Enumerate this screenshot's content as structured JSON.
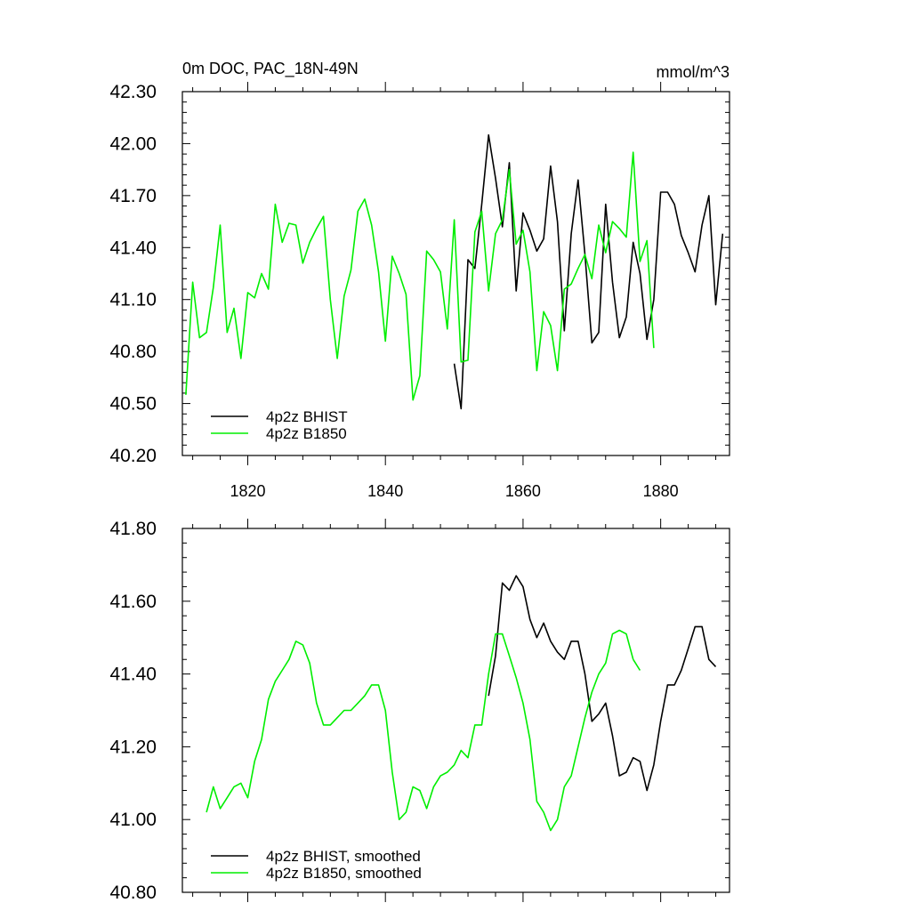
{
  "colors": {
    "bhist": "#000000",
    "b1850": "#00ee00",
    "frame": "#000000"
  },
  "chart_data": [
    {
      "type": "line",
      "title": "0m DOC, PAC_18N-49N",
      "units": "mmol/m^3",
      "xlim": [
        1810.5,
        1890
      ],
      "ylim": [
        40.2,
        42.3
      ],
      "yticks": [
        40.2,
        40.5,
        40.8,
        41.1,
        41.4,
        41.7,
        42.0,
        42.3
      ],
      "ytick_labels": [
        "40.20",
        "40.50",
        "40.80",
        "41.10",
        "41.40",
        "41.70",
        "42.00",
        "42.30"
      ],
      "xticks": [
        1820,
        1840,
        1860,
        1880
      ],
      "xtick_labels": [
        "1820",
        "1840",
        "1860",
        "1880"
      ],
      "legend_position": "bottom-left",
      "series": [
        {
          "name": "4p2z BHIST",
          "x": [
            1850,
            1851,
            1852,
            1853,
            1854,
            1855,
            1856,
            1857,
            1858,
            1859,
            1860,
            1861,
            1862,
            1863,
            1864,
            1865,
            1866,
            1867,
            1868,
            1869,
            1870,
            1871,
            1872,
            1873,
            1874,
            1875,
            1876,
            1877,
            1878,
            1879,
            1880,
            1881,
            1882,
            1883,
            1884,
            1885,
            1886,
            1887,
            1888,
            1889
          ],
          "values": [
            40.73,
            40.47,
            41.33,
            41.28,
            41.65,
            42.05,
            41.8,
            41.52,
            41.89,
            41.15,
            41.6,
            41.5,
            41.38,
            41.45,
            41.87,
            41.55,
            40.92,
            41.48,
            41.79,
            41.36,
            40.85,
            40.91,
            41.65,
            41.2,
            40.88,
            41.0,
            41.43,
            41.25,
            40.87,
            41.1,
            41.72,
            41.72,
            41.65,
            41.47,
            41.37,
            41.26,
            41.53,
            41.7,
            41.07,
            41.48
          ]
        },
        {
          "name": "4p2z B1850",
          "x": [
            1811,
            1812,
            1813,
            1814,
            1815,
            1816,
            1817,
            1818,
            1819,
            1820,
            1821,
            1822,
            1823,
            1824,
            1825,
            1826,
            1827,
            1828,
            1829,
            1830,
            1831,
            1832,
            1833,
            1834,
            1835,
            1836,
            1837,
            1838,
            1839,
            1840,
            1841,
            1842,
            1843,
            1844,
            1845,
            1846,
            1847,
            1848,
            1849,
            1850,
            1851,
            1852,
            1853,
            1854,
            1855,
            1856,
            1857,
            1858,
            1859,
            1860,
            1861,
            1862,
            1863,
            1864,
            1865,
            1866,
            1867,
            1868,
            1869,
            1870,
            1871,
            1872,
            1873,
            1874,
            1875,
            1876,
            1877,
            1878,
            1879
          ],
          "values": [
            40.55,
            41.2,
            40.88,
            40.91,
            41.17,
            41.53,
            40.91,
            41.05,
            40.76,
            41.14,
            41.11,
            41.25,
            41.16,
            41.65,
            41.43,
            41.54,
            41.53,
            41.31,
            41.43,
            41.51,
            41.58,
            41.1,
            40.76,
            41.12,
            41.27,
            41.61,
            41.68,
            41.53,
            41.26,
            40.86,
            41.35,
            41.25,
            41.13,
            40.52,
            40.66,
            41.38,
            41.33,
            41.26,
            40.93,
            41.56,
            40.74,
            40.75,
            41.49,
            41.61,
            41.15,
            41.48,
            41.56,
            41.85,
            41.42,
            41.5,
            41.26,
            40.69,
            41.03,
            40.95,
            40.69,
            41.16,
            41.19,
            41.28,
            41.36,
            41.22,
            41.53,
            41.37,
            41.55,
            41.51,
            41.46,
            41.95,
            41.32,
            41.44,
            40.82
          ]
        },
        {
          "name": "",
          "x": [
            1879
          ],
          "values": [
            41.37
          ]
        }
      ]
    },
    {
      "type": "line",
      "title": "",
      "xlim": [
        1810.5,
        1890
      ],
      "ylim": [
        40.8,
        41.8
      ],
      "yticks": [
        40.8,
        41.0,
        41.2,
        41.4,
        41.6,
        41.8
      ],
      "ytick_labels": [
        "40.80",
        "41.00",
        "41.20",
        "41.40",
        "41.60",
        "41.80"
      ],
      "xticks": [
        1820,
        1840,
        1860,
        1880
      ],
      "xtick_labels": [],
      "legend_position": "bottom-left",
      "series": [
        {
          "name": "4p2z BHIST, smoothed",
          "x": [
            1855,
            1856,
            1857,
            1858,
            1859,
            1860,
            1861,
            1862,
            1863,
            1864,
            1865,
            1866,
            1867,
            1868,
            1869,
            1870,
            1871,
            1872,
            1873,
            1874,
            1875,
            1876,
            1877,
            1878,
            1879,
            1880,
            1881,
            1882,
            1883,
            1884,
            1885,
            1886,
            1887,
            1888
          ],
          "values": [
            41.34,
            41.45,
            41.65,
            41.63,
            41.67,
            41.64,
            41.55,
            41.5,
            41.54,
            41.49,
            41.46,
            41.44,
            41.49,
            41.49,
            41.4,
            41.27,
            41.29,
            41.32,
            41.23,
            41.12,
            41.13,
            41.17,
            41.16,
            41.08,
            41.15,
            41.27,
            41.37,
            41.37,
            41.41,
            41.47,
            41.53,
            41.53,
            41.44,
            41.42
          ]
        },
        {
          "name": "4p2z B1850, smoothed",
          "x": [
            1814,
            1815,
            1816,
            1817,
            1818,
            1819,
            1820,
            1821,
            1822,
            1823,
            1824,
            1825,
            1826,
            1827,
            1828,
            1829,
            1830,
            1831,
            1832,
            1833,
            1834,
            1835,
            1836,
            1837,
            1838,
            1839,
            1840,
            1841,
            1842,
            1843,
            1844,
            1845,
            1846,
            1847,
            1848,
            1849,
            1850,
            1851,
            1852,
            1853,
            1854,
            1855,
            1856,
            1857,
            1858,
            1859,
            1860,
            1861,
            1862,
            1863,
            1864,
            1865,
            1866,
            1867,
            1868,
            1869,
            1870,
            1871,
            1872,
            1873,
            1874,
            1875,
            1876
          ],
          "values": [
            41.02,
            41.09,
            41.03,
            41.06,
            41.09,
            41.1,
            41.06,
            41.16,
            41.22,
            41.33,
            41.38,
            41.41,
            41.44,
            41.49,
            41.48,
            41.43,
            41.32,
            41.26,
            41.26,
            41.28,
            41.3,
            41.3,
            41.32,
            41.34,
            41.37,
            41.37,
            41.3,
            41.13,
            41.0,
            41.02,
            41.09,
            41.08,
            41.03,
            41.09,
            41.12,
            41.13,
            41.15,
            41.19,
            41.17,
            41.26,
            41.26,
            41.4,
            41.51,
            41.51,
            41.45,
            41.39,
            41.32,
            41.22,
            41.05,
            41.02,
            40.97,
            41.0,
            41.09,
            41.12,
            41.2,
            41.28,
            41.35,
            41.4,
            41.43,
            41.51,
            41.52,
            41.51,
            41.44
          ]
        },
        {
          "name": "",
          "x": [
            1876,
            1877
          ],
          "values": [
            41.44,
            41.41
          ]
        }
      ]
    }
  ]
}
